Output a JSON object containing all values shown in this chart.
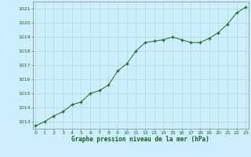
{
  "x": [
    0,
    1,
    2,
    3,
    4,
    5,
    6,
    7,
    8,
    9,
    10,
    11,
    12,
    13,
    14,
    15,
    16,
    17,
    18,
    19,
    20,
    21,
    22,
    23
  ],
  "y": [
    1012.7,
    1013.0,
    1013.4,
    1013.7,
    1014.2,
    1014.4,
    1015.0,
    1015.2,
    1015.6,
    1016.6,
    1017.1,
    1018.0,
    1018.6,
    1018.7,
    1018.8,
    1019.0,
    1018.8,
    1018.6,
    1018.6,
    1018.9,
    1019.3,
    1019.9,
    1020.7,
    1021.1
  ],
  "line_color": "#1a6b1a",
  "marker": "+",
  "marker_color": "#1a6b1a",
  "bg_color": "#cceeff",
  "grid_color": "#aaddcc",
  "xlabel": "Graphe pression niveau de la mer (hPa)",
  "xlabel_color": "#1a5c1a",
  "tick_color": "#1a6b1a",
  "ylim": [
    1012.5,
    1021.5
  ],
  "yticks": [
    1013,
    1014,
    1015,
    1016,
    1017,
    1018,
    1019,
    1020,
    1021
  ],
  "xticks": [
    0,
    1,
    2,
    3,
    4,
    5,
    6,
    7,
    8,
    9,
    10,
    11,
    12,
    13,
    14,
    15,
    16,
    17,
    18,
    19,
    20,
    21,
    22,
    23
  ],
  "xlim": [
    -0.3,
    23.3
  ]
}
